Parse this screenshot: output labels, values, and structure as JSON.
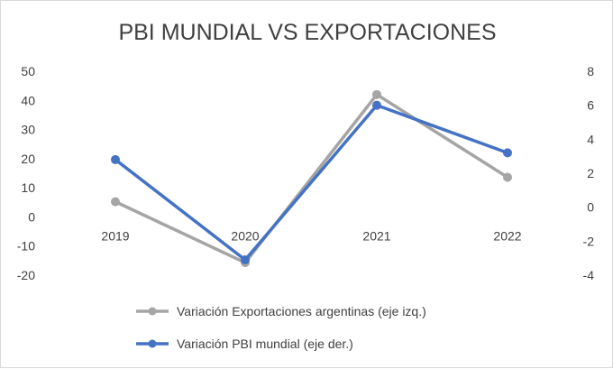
{
  "chart_data": {
    "type": "line",
    "title": "PBI MUNDIAL VS EXPORTACIONES",
    "categories": [
      "2019",
      "2020",
      "2021",
      "2022"
    ],
    "y_left": {
      "ticks": [
        "50",
        "40",
        "30",
        "20",
        "10",
        "0",
        "-10",
        "-20"
      ],
      "ylim": [
        -20,
        50
      ]
    },
    "y_right": {
      "ticks": [
        "8",
        "6",
        "4",
        "2",
        "0",
        "-2",
        "-4"
      ],
      "ylim": [
        -4,
        8
      ]
    },
    "grid": false,
    "legend_position": "bottom",
    "series": [
      {
        "name": "Variación Exportaciones argentinas (eje izq.)",
        "axis": "left",
        "color": "#a5a5a5",
        "values": [
          5.2,
          -15.7,
          42,
          13.6
        ]
      },
      {
        "name": "Variación PBI mundial (eje der.)",
        "axis": "right",
        "color": "#4472c4",
        "values": [
          2.8,
          -3.1,
          6.0,
          3.2
        ]
      }
    ]
  }
}
